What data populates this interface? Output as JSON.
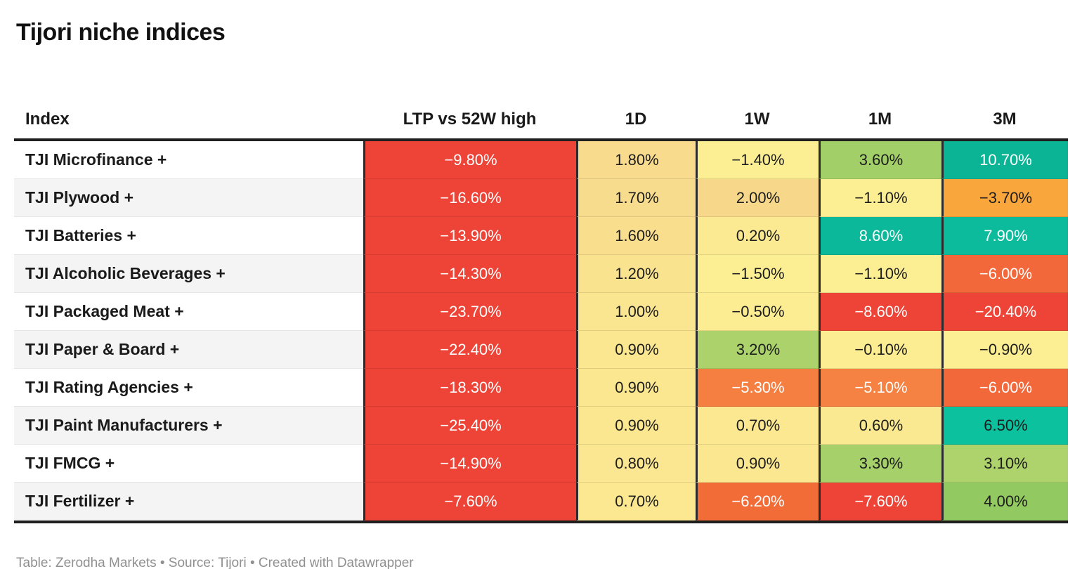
{
  "title": "Tijori niche indices",
  "footer": "Table: Zerodha Markets • Source: Tijori • Created with Datawrapper",
  "table": {
    "columns": [
      "Index",
      "LTP vs 52W high",
      "1D",
      "1W",
      "1M",
      "3M"
    ],
    "rows": [
      {
        "index": "TJI Microfinance +",
        "cells": [
          {
            "value": "−9.80%",
            "bg": "#ee4437",
            "text": "light"
          },
          {
            "value": "1.80%",
            "bg": "#f8db8d",
            "text": "dark"
          },
          {
            "value": "−1.40%",
            "bg": "#fcee93",
            "text": "dark"
          },
          {
            "value": "3.60%",
            "bg": "#a2cf68",
            "text": "dark"
          },
          {
            "value": "10.70%",
            "bg": "#0cb496",
            "text": "light"
          }
        ]
      },
      {
        "index": "TJI Plywood +",
        "cells": [
          {
            "value": "−16.60%",
            "bg": "#ee4437",
            "text": "light"
          },
          {
            "value": "1.70%",
            "bg": "#f8dc8e",
            "text": "dark"
          },
          {
            "value": "2.00%",
            "bg": "#f7d88b",
            "text": "dark"
          },
          {
            "value": "−1.10%",
            "bg": "#fcee93",
            "text": "dark"
          },
          {
            "value": "−3.70%",
            "bg": "#f9a63d",
            "text": "dark"
          }
        ]
      },
      {
        "index": "TJI Batteries +",
        "cells": [
          {
            "value": "−13.90%",
            "bg": "#ee4437",
            "text": "light"
          },
          {
            "value": "1.60%",
            "bg": "#f9de8e",
            "text": "dark"
          },
          {
            "value": "0.20%",
            "bg": "#fbea91",
            "text": "dark"
          },
          {
            "value": "8.60%",
            "bg": "#0cb89a",
            "text": "light"
          },
          {
            "value": "7.90%",
            "bg": "#0cbb9c",
            "text": "light"
          }
        ]
      },
      {
        "index": "TJI Alcoholic Beverages +",
        "cells": [
          {
            "value": "−14.30%",
            "bg": "#ee4437",
            "text": "light"
          },
          {
            "value": "1.20%",
            "bg": "#fae38f",
            "text": "dark"
          },
          {
            "value": "−1.50%",
            "bg": "#fcee93",
            "text": "dark"
          },
          {
            "value": "−1.10%",
            "bg": "#fcee93",
            "text": "dark"
          },
          {
            "value": "−6.00%",
            "bg": "#f2683a",
            "text": "light"
          }
        ]
      },
      {
        "index": "TJI Packaged Meat +",
        "cells": [
          {
            "value": "−23.70%",
            "bg": "#ee4437",
            "text": "light"
          },
          {
            "value": "1.00%",
            "bg": "#fae690",
            "text": "dark"
          },
          {
            "value": "−0.50%",
            "bg": "#fced92",
            "text": "dark"
          },
          {
            "value": "−8.60%",
            "bg": "#ee4437",
            "text": "light"
          },
          {
            "value": "−20.40%",
            "bg": "#ee4437",
            "text": "light"
          }
        ]
      },
      {
        "index": "TJI Paper & Board +",
        "cells": [
          {
            "value": "−22.40%",
            "bg": "#ee4437",
            "text": "light"
          },
          {
            "value": "0.90%",
            "bg": "#fbe790",
            "text": "dark"
          },
          {
            "value": "3.20%",
            "bg": "#abd26b",
            "text": "dark"
          },
          {
            "value": "−0.10%",
            "bg": "#fcec92",
            "text": "dark"
          },
          {
            "value": "−0.90%",
            "bg": "#fcee93",
            "text": "dark"
          }
        ]
      },
      {
        "index": "TJI Rating Agencies +",
        "cells": [
          {
            "value": "−18.30%",
            "bg": "#ee4437",
            "text": "light"
          },
          {
            "value": "0.90%",
            "bg": "#fbe790",
            "text": "dark"
          },
          {
            "value": "−5.30%",
            "bg": "#f57e41",
            "text": "light"
          },
          {
            "value": "−5.10%",
            "bg": "#f58143",
            "text": "light"
          },
          {
            "value": "−6.00%",
            "bg": "#f2683a",
            "text": "light"
          }
        ]
      },
      {
        "index": "TJI Paint Manufacturers +",
        "cells": [
          {
            "value": "−25.40%",
            "bg": "#ee4437",
            "text": "light"
          },
          {
            "value": "0.90%",
            "bg": "#fbe790",
            "text": "dark"
          },
          {
            "value": "0.70%",
            "bg": "#fbe891",
            "text": "dark"
          },
          {
            "value": "0.60%",
            "bg": "#fbe991",
            "text": "dark"
          },
          {
            "value": "6.50%",
            "bg": "#0bc19e",
            "text": "dark"
          }
        ]
      },
      {
        "index": "TJI FMCG +",
        "cells": [
          {
            "value": "−14.90%",
            "bg": "#ee4437",
            "text": "light"
          },
          {
            "value": "0.80%",
            "bg": "#fbe791",
            "text": "dark"
          },
          {
            "value": "0.90%",
            "bg": "#fbe790",
            "text": "dark"
          },
          {
            "value": "3.30%",
            "bg": "#a6d069",
            "text": "dark"
          },
          {
            "value": "3.10%",
            "bg": "#aed36c",
            "text": "dark"
          }
        ]
      },
      {
        "index": "TJI Fertilizer +",
        "cells": [
          {
            "value": "−7.60%",
            "bg": "#ee4437",
            "text": "light"
          },
          {
            "value": "0.70%",
            "bg": "#fbe891",
            "text": "dark"
          },
          {
            "value": "−6.20%",
            "bg": "#f26c38",
            "text": "light"
          },
          {
            "value": "−7.60%",
            "bg": "#ee4437",
            "text": "light"
          },
          {
            "value": "4.00%",
            "bg": "#92c961",
            "text": "dark"
          }
        ]
      }
    ]
  },
  "chart_data": {
    "type": "table",
    "title": "Tijori niche indices",
    "columns": [
      "Index",
      "LTP vs 52W high",
      "1D",
      "1W",
      "1M",
      "3M"
    ],
    "unit": "percent",
    "rows": [
      [
        "TJI Microfinance +",
        -9.8,
        1.8,
        -1.4,
        3.6,
        10.7
      ],
      [
        "TJI Plywood +",
        -16.6,
        1.7,
        2.0,
        -1.1,
        -3.7
      ],
      [
        "TJI Batteries +",
        -13.9,
        1.6,
        0.2,
        8.6,
        7.9
      ],
      [
        "TJI Alcoholic Beverages +",
        -14.3,
        1.2,
        -1.5,
        -1.1,
        -6.0
      ],
      [
        "TJI Packaged Meat +",
        -23.7,
        1.0,
        -0.5,
        -8.6,
        -20.4
      ],
      [
        "TJI Paper & Board +",
        -22.4,
        0.9,
        3.2,
        -0.1,
        -0.9
      ],
      [
        "TJI Rating Agencies +",
        -18.3,
        0.9,
        -5.3,
        -5.1,
        -6.0
      ],
      [
        "TJI Paint Manufacturers +",
        -25.4,
        0.9,
        0.7,
        0.6,
        6.5
      ],
      [
        "TJI FMCG +",
        -14.9,
        0.8,
        0.9,
        3.3,
        3.1
      ],
      [
        "TJI Fertilizer +",
        -7.6,
        0.7,
        -6.2,
        -7.6,
        4.0
      ]
    ],
    "heatmap_palette": {
      "strong_negative": "#ee4437",
      "negative": "#f2683a",
      "mild_negative": "#f9a63d",
      "near_zero": "#fcee93",
      "mild_positive": "#f8db8d",
      "positive": "#a2cf68",
      "strong_positive": "#0cb496"
    }
  }
}
